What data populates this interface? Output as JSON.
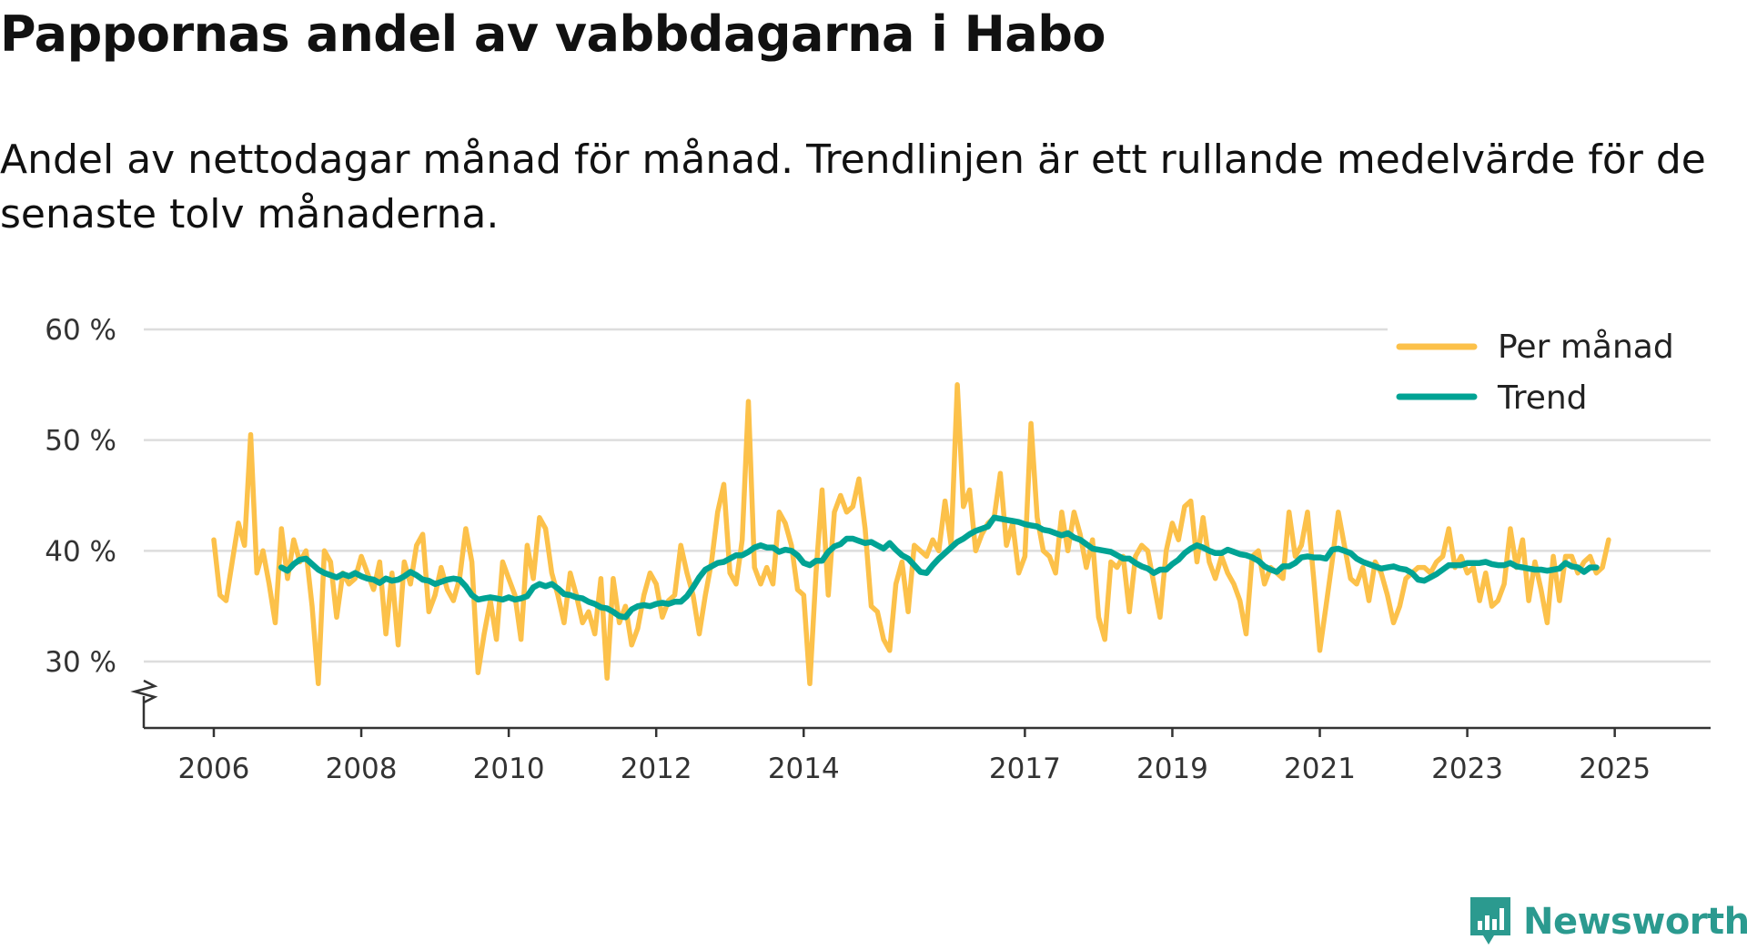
{
  "title": "Pappornas andel av vabbdagarna i Habo",
  "subtitle": "Andel av nettodagar månad för månad. Trendlinjen är ett rullande medelvärde för de senaste tolv månaderna.",
  "brand": "Newsworthy",
  "colors": {
    "monthly": "#fcc14a",
    "trend": "#00a394",
    "grid": "#dddddd",
    "axis": "#333333",
    "brand": "#2b9a8f"
  },
  "chart_data": {
    "type": "line",
    "x_unit": "decimal year",
    "xlim": [
      2005.05,
      2026.3
    ],
    "ylim": [
      24,
      60
    ],
    "axis_break": true,
    "y_ticks": [
      {
        "value": 30,
        "label": "30 %"
      },
      {
        "value": 40,
        "label": "40 %"
      },
      {
        "value": 50,
        "label": "50 %"
      },
      {
        "value": 60,
        "label": "60 %"
      }
    ],
    "x_ticks": [
      {
        "value": 2006,
        "label": "2006"
      },
      {
        "value": 2008,
        "label": "2008"
      },
      {
        "value": 2010,
        "label": "2010"
      },
      {
        "value": 2012,
        "label": "2012"
      },
      {
        "value": 2014,
        "label": "2014"
      },
      {
        "value": 2017,
        "label": "2017"
      },
      {
        "value": 2019,
        "label": "2019"
      },
      {
        "value": 2021,
        "label": "2021"
      },
      {
        "value": 2023,
        "label": "2023"
      },
      {
        "value": 2025,
        "label": "2025"
      }
    ],
    "legend": {
      "position": "top-right",
      "entries": [
        "Per månad",
        "Trend"
      ]
    },
    "series": [
      {
        "name": "Per månad",
        "start": 2006.0,
        "step": 0.0833333,
        "values": [
          41,
          36,
          35.5,
          39,
          42.5,
          40.5,
          50.5,
          38,
          40,
          37,
          33.5,
          42,
          37.5,
          41,
          39,
          40,
          35,
          28,
          40,
          39,
          34,
          38,
          37,
          37.5,
          39.5,
          38,
          36.5,
          39,
          32.5,
          38,
          31.5,
          39,
          37,
          40.5,
          41.5,
          34.5,
          36,
          38.5,
          36.5,
          35.5,
          37.5,
          42,
          39,
          29,
          32.5,
          35.5,
          32,
          39,
          37.5,
          36,
          32,
          40.5,
          37.5,
          43,
          42,
          38,
          36,
          33.5,
          38,
          36,
          33.5,
          34.5,
          32.5,
          37.5,
          28.5,
          37.5,
          33.5,
          35,
          31.5,
          33,
          36,
          38,
          37,
          34,
          35.5,
          36,
          40.5,
          38,
          36,
          32.5,
          36,
          39,
          43.5,
          46,
          38,
          37,
          41,
          53.5,
          38.5,
          37,
          38.5,
          37,
          43.5,
          42.5,
          40.5,
          36.5,
          36,
          28,
          38,
          45.5,
          36,
          43.5,
          45,
          43.5,
          44,
          46.5,
          42,
          35,
          34.5,
          32,
          31,
          37,
          39,
          34.5,
          40.5,
          40,
          39.5,
          41,
          40,
          44.5,
          40.5,
          55,
          44,
          45.5,
          40,
          41.5,
          42.5,
          43,
          47,
          40.5,
          42.5,
          38,
          39.5,
          51.5,
          43,
          40,
          39.5,
          38,
          43.5,
          40,
          43.5,
          41.5,
          38.5,
          41,
          34,
          32,
          39,
          38.5,
          39.5,
          34.5,
          39.5,
          40.5,
          40,
          37,
          34,
          40,
          42.5,
          41,
          44,
          44.5,
          39,
          43,
          39,
          37.5,
          39.5,
          38,
          37,
          35.5,
          32.5,
          39.5,
          40,
          37,
          38.5,
          38,
          37.5,
          43.5,
          39.5,
          40.5,
          43.5,
          37.5,
          31,
          35,
          39,
          43.5,
          40.5,
          37.5,
          37,
          38.5,
          35.5,
          39,
          38,
          36,
          33.5,
          35,
          37.5,
          38,
          38.5,
          38.5,
          38,
          39,
          39.5,
          42,
          38.5,
          39.5,
          38,
          38.5,
          35.5,
          38,
          35,
          35.5,
          37,
          42,
          38.5,
          41,
          35.5,
          39,
          36.5,
          33.5,
          39.5,
          35.5,
          39.5,
          39.5,
          38,
          39,
          39.5,
          38,
          38.5,
          41
        ]
      },
      {
        "name": "Trend",
        "start": 2006.9167,
        "step": 0.0833333,
        "values": [
          38.5,
          38.2,
          38.8,
          39.2,
          39.3,
          38.8,
          38.3,
          38.0,
          37.8,
          37.6,
          37.9,
          37.7,
          38.0,
          37.7,
          37.5,
          37.4,
          37.1,
          37.5,
          37.3,
          37.4,
          37.7,
          38.1,
          37.8,
          37.4,
          37.3,
          37.0,
          37.2,
          37.4,
          37.5,
          37.4,
          36.8,
          36.0,
          35.6,
          35.7,
          35.8,
          35.7,
          35.6,
          35.8,
          35.6,
          35.7,
          35.9,
          36.7,
          37.0,
          36.8,
          37.0,
          36.6,
          36.1,
          36.0,
          35.8,
          35.7,
          35.4,
          35.2,
          34.9,
          34.8,
          34.5,
          34.1,
          34.0,
          34.7,
          35.0,
          35.1,
          35.0,
          35.2,
          35.3,
          35.2,
          35.4,
          35.4,
          35.9,
          36.7,
          37.6,
          38.3,
          38.6,
          38.9,
          39.0,
          39.3,
          39.6,
          39.6,
          39.9,
          40.3,
          40.5,
          40.3,
          40.3,
          39.9,
          40.1,
          40.0,
          39.6,
          38.9,
          38.7,
          39.1,
          39.1,
          39.9,
          40.4,
          40.6,
          41.1,
          41.1,
          40.9,
          40.7,
          40.8,
          40.5,
          40.2,
          40.7,
          40.1,
          39.6,
          39.3,
          38.7,
          38.1,
          38.0,
          38.7,
          39.3,
          39.8,
          40.3,
          40.8,
          41.1,
          41.5,
          41.8,
          42.0,
          42.2,
          43.0,
          42.9,
          42.8,
          42.7,
          42.6,
          42.4,
          42.3,
          42.2,
          41.9,
          41.8,
          41.6,
          41.4,
          41.6,
          41.2,
          41.0,
          40.6,
          40.2,
          40.1,
          40.0,
          39.9,
          39.6,
          39.3,
          39.3,
          38.9,
          38.6,
          38.4,
          38.0,
          38.3,
          38.3,
          38.8,
          39.2,
          39.8,
          40.2,
          40.5,
          40.3,
          40.0,
          39.8,
          39.8,
          40.1,
          39.9,
          39.7,
          39.6,
          39.4,
          39.1,
          38.6,
          38.3,
          38.1,
          38.6,
          38.6,
          38.9,
          39.4,
          39.5,
          39.4,
          39.4,
          39.3,
          40.1,
          40.2,
          40.0,
          39.8,
          39.3,
          39.0,
          38.8,
          38.6,
          38.4,
          38.5,
          38.6,
          38.4,
          38.3,
          38.0,
          37.4,
          37.3,
          37.6,
          37.9,
          38.3,
          38.7,
          38.7,
          38.7,
          38.9,
          38.9,
          38.9,
          39.0,
          38.8,
          38.7,
          38.7,
          38.9,
          38.6,
          38.5,
          38.4,
          38.3,
          38.3,
          38.2,
          38.3,
          38.4,
          38.9,
          38.6,
          38.5,
          38.1,
          38.5,
          38.5
        ]
      }
    ]
  }
}
